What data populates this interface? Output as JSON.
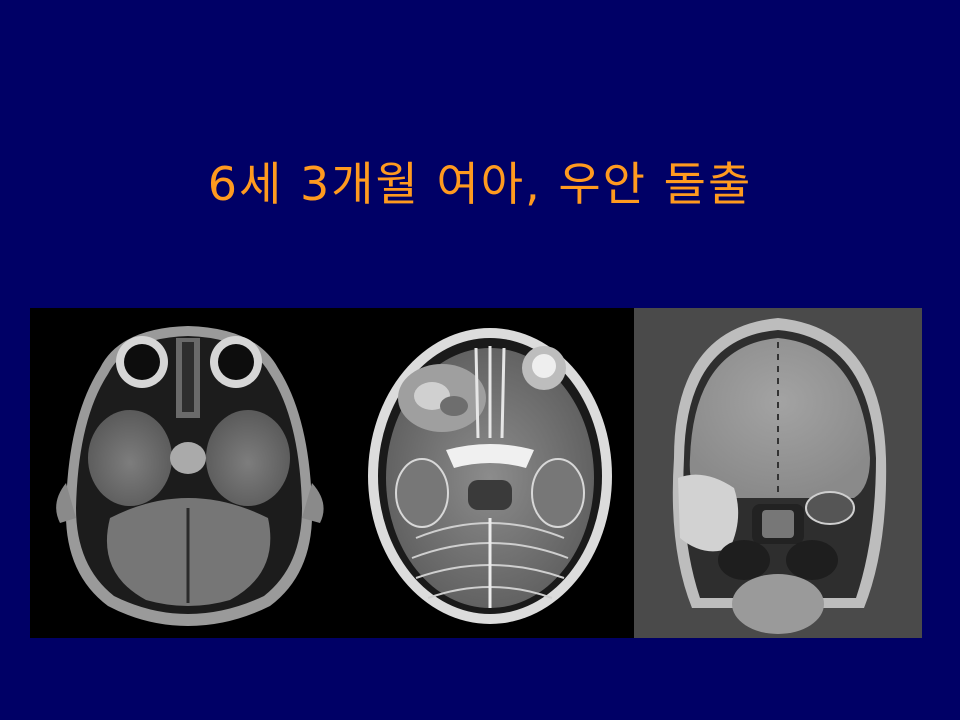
{
  "slide": {
    "title": "6세 3개월 여아, 우안 돌출",
    "background_color": "#000066",
    "title_color": "#ff9a1f"
  },
  "images": [
    {
      "name": "axial-t1-mri"
    },
    {
      "name": "axial-t2-mri"
    },
    {
      "name": "coronal-contrast-mri"
    }
  ]
}
